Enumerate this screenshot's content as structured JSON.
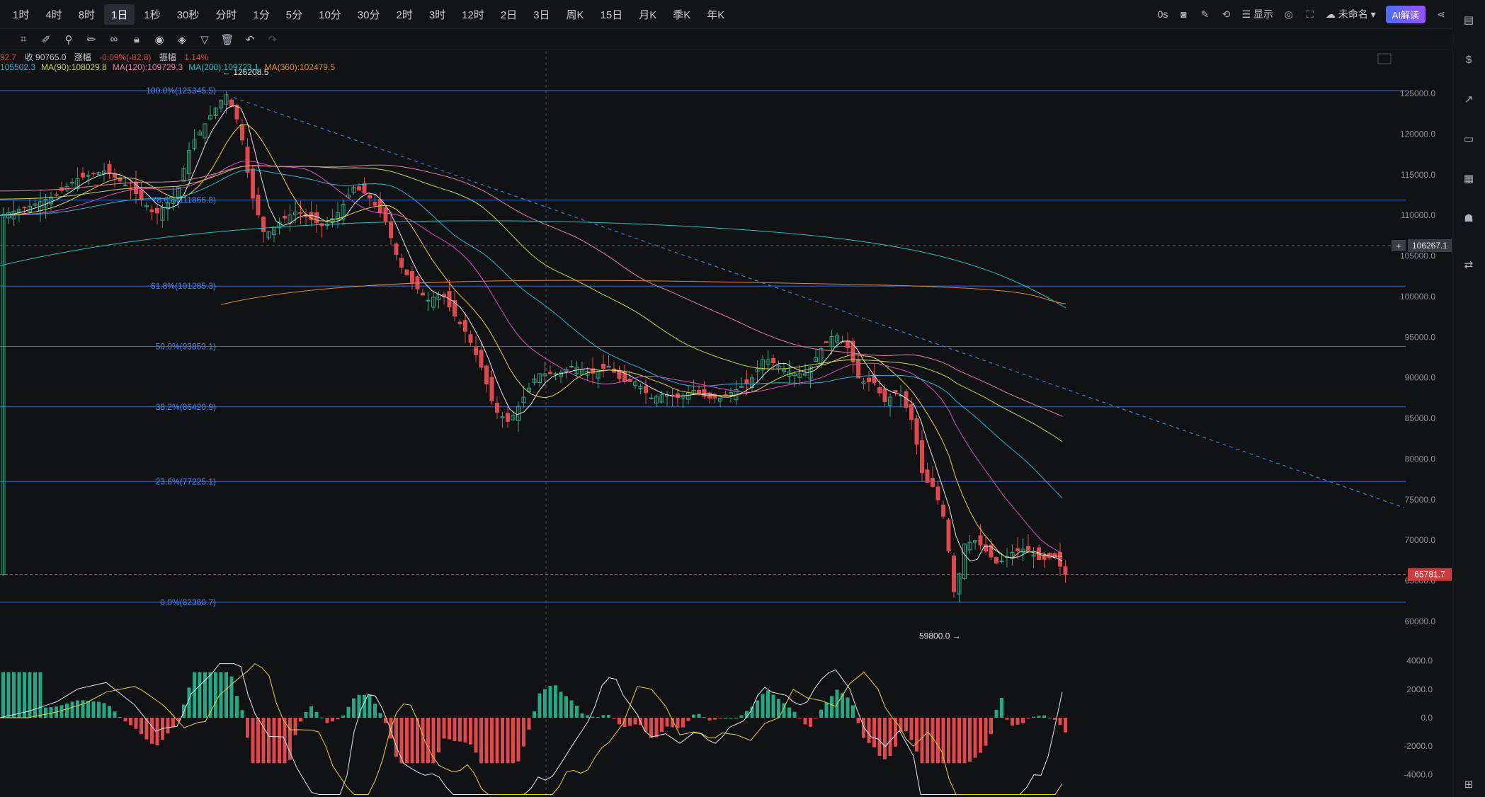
{
  "timeframes": [
    "1时",
    "4时",
    "8时",
    "1日",
    "1秒",
    "30秒",
    "分时",
    "1分",
    "5分",
    "10分",
    "30分",
    "2时",
    "3时",
    "12时",
    "2日",
    "3日",
    "周K",
    "15日",
    "月K",
    "季K",
    "年K"
  ],
  "active_timeframe": "1日",
  "top_right": {
    "countdown": "0s",
    "display_label": "显示",
    "layout_name": "未命名",
    "ai_label": "AI解读"
  },
  "info_line": {
    "prev": "92.7",
    "close": "收 90765.0",
    "change_label": "涨幅",
    "change": "-0.09%(-82.8)",
    "amp_label": "振幅",
    "amp": "1.14%"
  },
  "ma_line": [
    {
      "text": "105502.3",
      "color": "#2bb3d8"
    },
    {
      "text": "MA(90):108029.8",
      "color": "#c8d84a"
    },
    {
      "text": "MA(120):109729.3",
      "color": "#e77fa0"
    },
    {
      "text": "MA(200):109723.1",
      "color": "#1fc1c4"
    },
    {
      "text": "MA(360):102479.5",
      "color": "#e08a2a"
    }
  ],
  "price_axis": [
    "125000.0",
    "120000.0",
    "115000.0",
    "110000.0",
    "105000.0",
    "100000.0",
    "95000.0",
    "90000.0",
    "85000.0",
    "80000.0",
    "75000.0",
    "70000.0",
    "65000.0",
    "60000.0"
  ],
  "macd_axis": [
    "4000.0",
    "2000.0",
    "0.0",
    "-2000.0",
    "-4000.0"
  ],
  "crosshair_price": "106267.1",
  "last_price": "65781.7",
  "high_label": "126208.5",
  "low_label": "59800.0",
  "fib_levels": [
    {
      "label": "100.0%(125345.5)",
      "price": 125345.5
    },
    {
      "label": "78.6%(111866.8)",
      "price": 111866.8
    },
    {
      "label": "61.8%(101285.3)",
      "price": 101285.3
    },
    {
      "label": "50.0%(93853.1)",
      "price": 93853.1
    },
    {
      "label": "38.2%(86420.9)",
      "price": 86420.9
    },
    {
      "label": "23.6%(77225.1)",
      "price": 77225.1
    },
    {
      "label": "0.0%(62360.7)",
      "price": 62360.7
    }
  ],
  "colors": {
    "up": "#22a884",
    "down": "#e0484e",
    "fib": "#2f6fe0",
    "bg": "#111214"
  }
}
